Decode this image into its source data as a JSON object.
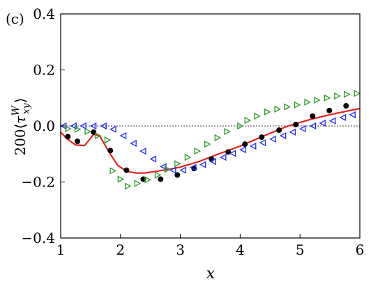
{
  "chart_data": {
    "type": "scatter",
    "panel_label": "(c)",
    "xlabel": "x",
    "ylabel": "200⟨τ_xy^W⟩",
    "xlim": [
      1,
      6
    ],
    "ylim": [
      -0.4,
      0.4
    ],
    "x_ticks": [
      1,
      2,
      3,
      4,
      5,
      6
    ],
    "x_tick_labels": [
      "1",
      "2",
      "3",
      "4",
      "5",
      "6"
    ],
    "y_ticks": [
      -0.4,
      -0.2,
      0.0,
      0.2,
      0.4
    ],
    "y_tick_labels": [
      "−0.4",
      "−0.2",
      "0.0",
      "0.2",
      "0.4"
    ],
    "zero_line": true,
    "grid": false,
    "colors": {
      "line": "#e8201e",
      "black": "#000000",
      "blue": "#1f2cff",
      "green": "#2a9a25"
    },
    "series": [
      {
        "style": "line",
        "color": "#e8201e",
        "x": [
          1.0,
          1.1,
          1.25,
          1.4,
          1.55,
          1.65,
          1.8,
          1.95,
          2.1,
          2.25,
          2.4,
          2.6,
          2.8,
          3.0,
          3.3,
          3.6,
          4.0,
          4.4,
          4.8,
          5.2,
          5.6,
          6.0
        ],
        "y": [
          -0.022,
          -0.045,
          -0.068,
          -0.07,
          -0.03,
          -0.035,
          -0.09,
          -0.14,
          -0.162,
          -0.168,
          -0.168,
          -0.162,
          -0.155,
          -0.147,
          -0.128,
          -0.103,
          -0.072,
          -0.035,
          0.0,
          0.025,
          0.045,
          0.062
        ]
      },
      {
        "style": "circle",
        "color": "#000000",
        "x": [
          1.12,
          1.28,
          1.55,
          1.83,
          2.1,
          2.38,
          2.67,
          2.95,
          3.23,
          3.52,
          3.8,
          4.08,
          4.36,
          4.65,
          4.93,
          5.21,
          5.49,
          5.77
        ],
        "y": [
          -0.038,
          -0.055,
          -0.022,
          -0.088,
          -0.158,
          -0.19,
          -0.19,
          -0.175,
          -0.152,
          -0.118,
          -0.093,
          -0.065,
          -0.04,
          -0.015,
          0.005,
          0.035,
          0.055,
          0.072
        ]
      },
      {
        "style": "triangle-left",
        "color": "#1f2cff",
        "x": [
          1.05,
          1.22,
          1.38,
          1.55,
          1.72,
          1.88,
          2.05,
          2.22,
          2.38,
          2.55,
          2.72,
          2.88,
          3.05,
          3.22,
          3.38,
          3.55,
          3.72,
          3.88,
          4.05,
          4.22,
          4.38,
          4.55,
          4.72,
          4.88,
          5.05,
          5.22,
          5.38,
          5.55,
          5.72,
          5.88
        ],
        "y": [
          0.0,
          0.0,
          0.0,
          0.0,
          0.0,
          -0.012,
          -0.035,
          -0.062,
          -0.09,
          -0.118,
          -0.145,
          -0.158,
          -0.158,
          -0.148,
          -0.138,
          -0.127,
          -0.112,
          -0.098,
          -0.085,
          -0.072,
          -0.06,
          -0.047,
          -0.035,
          -0.022,
          -0.01,
          0.0,
          0.01,
          0.018,
          0.03,
          0.04
        ]
      },
      {
        "style": "triangle-right",
        "color": "#2a9a25",
        "x": [
          1.12,
          1.28,
          1.45,
          1.62,
          1.78,
          1.87,
          2.0,
          2.12,
          2.28,
          2.45,
          2.62,
          2.78,
          2.95,
          3.12,
          3.28,
          3.45,
          3.62,
          3.78,
          4.0,
          4.12,
          4.28,
          4.45,
          4.62,
          4.78,
          4.95,
          5.12,
          5.28,
          5.45,
          5.62,
          5.78,
          5.95
        ],
        "y": [
          -0.01,
          -0.012,
          -0.02,
          -0.035,
          -0.05,
          -0.16,
          -0.19,
          -0.215,
          -0.205,
          -0.192,
          -0.175,
          -0.155,
          -0.135,
          -0.112,
          -0.09,
          -0.065,
          -0.042,
          -0.02,
          0.0,
          0.02,
          0.035,
          0.05,
          0.06,
          0.068,
          0.075,
          0.085,
          0.092,
          0.1,
          0.107,
          0.113,
          0.116
        ]
      }
    ]
  }
}
